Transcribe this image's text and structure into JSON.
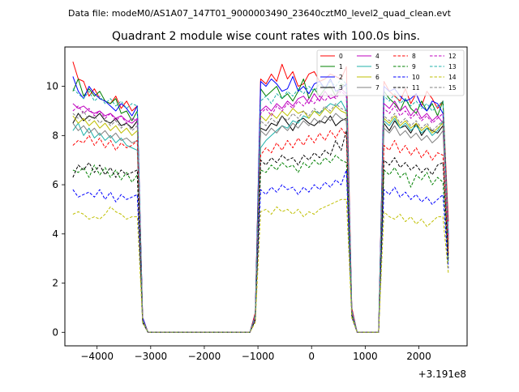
{
  "header": {
    "data_file": "Data file: modeM0/AS1A07_147T01_9000003490_23640cztM0_level2_quad_clean.evt"
  },
  "chart_data": {
    "type": "line",
    "title": "Quadrant 2 module wise count rates with 100.0s bins.",
    "xlabel": "",
    "ylabel": "",
    "x_offset_label": "+3.191e8",
    "xlim": [
      -4600,
      2900
    ],
    "ylim": [
      -0.55,
      11.6
    ],
    "xticks": [
      -4000,
      -3000,
      -2000,
      -1000,
      0,
      1000,
      2000
    ],
    "xtick_labels": [
      "−4000",
      "−3000",
      "−2000",
      "−1000",
      "0",
      "1000",
      "2000"
    ],
    "yticks": [
      0,
      2,
      4,
      6,
      8,
      10
    ],
    "ytick_labels": [
      "0",
      "2",
      "4",
      "6",
      "8",
      "10"
    ],
    "x": [
      -4450,
      -4350,
      -4250,
      -4150,
      -4050,
      -3950,
      -3850,
      -3750,
      -3650,
      -3550,
      -3450,
      -3350,
      -3250,
      -3150,
      -3050,
      -2950,
      -2850,
      -2750,
      -2650,
      -2550,
      -2450,
      -2350,
      -2250,
      -2150,
      -2050,
      -1950,
      -1850,
      -1750,
      -1650,
      -1550,
      -1450,
      -1350,
      -1250,
      -1150,
      -1050,
      -950,
      -850,
      -750,
      -650,
      -550,
      -450,
      -350,
      -250,
      -150,
      -50,
      50,
      150,
      250,
      350,
      450,
      550,
      650,
      750,
      850,
      950,
      1050,
      1150,
      1250,
      1350,
      1450,
      1550,
      1650,
      1750,
      1850,
      1950,
      2050,
      2150,
      2250,
      2350,
      2450,
      2550
    ],
    "series": [
      {
        "name": "0",
        "color": "#ff0000",
        "dash": "solid",
        "values": [
          11.0,
          10.3,
          10.2,
          9.6,
          9.9,
          9.5,
          9.4,
          9.3,
          9.6,
          9.1,
          9.4,
          9.0,
          9.2,
          0.6,
          0,
          0,
          0,
          0,
          0,
          0,
          0,
          0,
          0,
          0,
          0,
          0,
          0,
          0,
          0,
          0,
          0,
          0,
          0,
          0,
          0.8,
          10.3,
          10.1,
          10.5,
          10.2,
          10.9,
          10.3,
          10.6,
          10.0,
          10.1,
          10.5,
          10.6,
          10.2,
          10.3,
          10.5,
          10.4,
          10.3,
          10.8,
          1.0,
          0,
          0,
          0,
          0,
          0,
          10.2,
          9.8,
          9.6,
          9.4,
          9.9,
          9.3,
          9.7,
          9.2,
          9.8,
          9.5,
          9.1,
          9.4,
          4.5
        ]
      },
      {
        "name": "1",
        "color": "#008000",
        "dash": "solid",
        "values": [
          9.8,
          10.3,
          9.6,
          9.9,
          9.6,
          9.8,
          9.4,
          9.3,
          9.5,
          8.9,
          9.0,
          8.6,
          9.0,
          0.5,
          0,
          0,
          0,
          0,
          0,
          0,
          0,
          0,
          0,
          0,
          0,
          0,
          0,
          0,
          0,
          0,
          0,
          0,
          0,
          0,
          0.7,
          9.9,
          9.6,
          9.8,
          10.0,
          9.5,
          9.7,
          9.4,
          9.8,
          10.3,
          9.5,
          9.9,
          9.6,
          9.9,
          10.0,
          9.6,
          10.1,
          10.0,
          0.9,
          0,
          0,
          0,
          0,
          0,
          9.8,
          9.5,
          9.3,
          9.0,
          9.5,
          9.1,
          8.9,
          9.4,
          9.0,
          9.3,
          8.8,
          9.4,
          3.8
        ]
      },
      {
        "name": "2",
        "color": "#0000ff",
        "dash": "solid",
        "values": [
          10.4,
          9.8,
          9.5,
          10.0,
          9.7,
          9.5,
          9.4,
          9.2,
          9.0,
          9.3,
          9.1,
          8.8,
          9.2,
          0.6,
          0,
          0,
          0,
          0,
          0,
          0,
          0,
          0,
          0,
          0,
          0,
          0,
          0,
          0,
          0,
          0,
          0,
          0,
          0,
          0,
          0.7,
          10.2,
          10.0,
          10.3,
          10.1,
          9.8,
          9.9,
          10.4,
          9.8,
          10.0,
          9.7,
          10.1,
          10.2,
          9.9,
          10.3,
          9.8,
          9.9,
          10.1,
          0.9,
          0,
          0,
          0,
          0,
          0,
          10.0,
          9.8,
          9.9,
          9.6,
          9.4,
          9.5,
          9.7,
          9.2,
          9.0,
          9.4,
          9.3,
          8.9,
          4.0
        ]
      },
      {
        "name": "3",
        "color": "#000000",
        "dash": "solid",
        "values": [
          8.5,
          8.9,
          8.6,
          8.8,
          8.7,
          8.9,
          8.6,
          8.5,
          8.7,
          8.4,
          8.5,
          8.3,
          8.6,
          0.5,
          0,
          0,
          0,
          0,
          0,
          0,
          0,
          0,
          0,
          0,
          0,
          0,
          0,
          0,
          0,
          0,
          0,
          0,
          0,
          0,
          0.7,
          8.3,
          8.2,
          8.5,
          8.4,
          8.8,
          8.5,
          8.2,
          8.6,
          8.7,
          8.5,
          8.4,
          8.6,
          8.5,
          8.8,
          8.4,
          8.6,
          8.7,
          0.8,
          0,
          0,
          0,
          0,
          0,
          8.5,
          8.2,
          8.6,
          8.3,
          8.4,
          8.1,
          8.5,
          8.0,
          8.3,
          8.2,
          8.1,
          8.4,
          3.6
        ]
      },
      {
        "name": "4",
        "color": "#bf00bf",
        "dash": "solid",
        "values": [
          9.3,
          9.1,
          9.2,
          9.0,
          8.9,
          9.0,
          8.8,
          8.9,
          8.7,
          8.8,
          8.6,
          8.5,
          8.7,
          0.5,
          0,
          0,
          0,
          0,
          0,
          0,
          0,
          0,
          0,
          0,
          0,
          0,
          0,
          0,
          0,
          0,
          0,
          0,
          0,
          0,
          0.7,
          9.0,
          9.2,
          9.0,
          9.3,
          9.1,
          9.4,
          9.2,
          9.5,
          9.6,
          9.3,
          9.7,
          9.4,
          9.8,
          9.5,
          9.6,
          9.9,
          9.7,
          0.9,
          0,
          0,
          0,
          0,
          0,
          9.3,
          9.1,
          9.4,
          9.0,
          9.2,
          8.8,
          9.1,
          8.7,
          8.9,
          8.6,
          8.8,
          8.5,
          3.8
        ]
      },
      {
        "name": "5",
        "color": "#20b2aa",
        "dash": "solid",
        "values": [
          8.2,
          8.5,
          8.0,
          8.3,
          7.9,
          8.1,
          7.8,
          8.0,
          7.7,
          7.9,
          7.6,
          7.5,
          7.4,
          0.5,
          0,
          0,
          0,
          0,
          0,
          0,
          0,
          0,
          0,
          0,
          0,
          0,
          0,
          0,
          0,
          0,
          0,
          0,
          0,
          0,
          0.6,
          7.5,
          7.8,
          8.0,
          8.2,
          8.4,
          8.3,
          8.6,
          8.5,
          8.8,
          8.7,
          9.0,
          8.9,
          9.1,
          9.3,
          9.2,
          9.4,
          9.0,
          0.8,
          0,
          0,
          0,
          0,
          0,
          8.6,
          8.4,
          8.7,
          8.3,
          8.5,
          8.2,
          8.4,
          8.1,
          8.3,
          8.0,
          8.2,
          8.6,
          3.5
        ]
      },
      {
        "name": "6",
        "color": "#bfbf00",
        "dash": "solid",
        "values": [
          8.8,
          8.5,
          8.7,
          8.4,
          8.6,
          8.3,
          8.5,
          8.2,
          8.4,
          8.1,
          8.3,
          8.0,
          8.2,
          0.5,
          0,
          0,
          0,
          0,
          0,
          0,
          0,
          0,
          0,
          0,
          0,
          0,
          0,
          0,
          0,
          0,
          0,
          0,
          0,
          0,
          0.6,
          8.8,
          8.6,
          8.9,
          8.7,
          9.0,
          8.8,
          9.1,
          8.9,
          9.0,
          8.7,
          9.0,
          8.8,
          9.1,
          8.9,
          9.2,
          9.0,
          8.9,
          0.8,
          0,
          0,
          0,
          0,
          0,
          8.7,
          8.5,
          8.8,
          8.4,
          8.6,
          8.3,
          8.5,
          8.2,
          8.4,
          8.1,
          8.3,
          8.5,
          3.7
        ]
      },
      {
        "name": "7",
        "color": "#808080",
        "dash": "solid",
        "values": [
          8.5,
          8.2,
          8.4,
          8.1,
          8.3,
          8.0,
          8.2,
          7.9,
          8.1,
          7.8,
          7.9,
          7.7,
          7.8,
          0.5,
          0,
          0,
          0,
          0,
          0,
          0,
          0,
          0,
          0,
          0,
          0,
          0,
          0,
          0,
          0,
          0,
          0,
          0,
          0,
          0,
          0.6,
          8.2,
          8.0,
          8.3,
          8.1,
          8.4,
          8.2,
          8.5,
          8.3,
          8.6,
          8.4,
          8.7,
          8.5,
          8.8,
          8.6,
          8.9,
          8.7,
          8.6,
          0.8,
          0,
          0,
          0,
          0,
          0,
          8.3,
          8.1,
          8.4,
          8.0,
          8.2,
          7.9,
          8.1,
          7.8,
          8.0,
          7.7,
          7.9,
          8.2,
          3.4
        ]
      },
      {
        "name": "8",
        "color": "#ff0000",
        "dash": "dashed",
        "values": [
          7.6,
          7.8,
          7.7,
          8.0,
          7.6,
          7.9,
          7.5,
          7.8,
          7.4,
          7.7,
          7.5,
          7.6,
          7.8,
          0.5,
          0,
          0,
          0,
          0,
          0,
          0,
          0,
          0,
          0,
          0,
          0,
          0,
          0,
          0,
          0,
          0,
          0,
          0,
          0,
          0,
          0.6,
          7.2,
          7.5,
          7.3,
          7.7,
          7.4,
          7.8,
          7.5,
          7.9,
          7.6,
          8.0,
          7.7,
          8.1,
          7.8,
          8.2,
          7.9,
          8.3,
          8.0,
          0.8,
          0,
          0,
          0,
          0,
          0,
          7.6,
          7.4,
          7.8,
          7.3,
          7.6,
          7.2,
          7.5,
          7.1,
          7.4,
          7.0,
          7.3,
          7.2,
          3.2
        ]
      },
      {
        "name": "9",
        "color": "#008000",
        "dash": "dashed",
        "values": [
          6.6,
          6.5,
          6.7,
          6.3,
          6.8,
          6.4,
          6.7,
          6.3,
          6.6,
          6.2,
          6.5,
          6.1,
          6.4,
          0.4,
          0,
          0,
          0,
          0,
          0,
          0,
          0,
          0,
          0,
          0,
          0,
          0,
          0,
          0,
          0,
          0,
          0,
          0,
          0,
          0,
          0.5,
          6.6,
          6.5,
          6.8,
          6.6,
          6.9,
          6.7,
          6.8,
          6.5,
          6.9,
          6.7,
          7.0,
          6.8,
          7.1,
          6.9,
          7.2,
          7.0,
          6.9,
          0.7,
          0,
          0,
          0,
          0,
          0,
          6.6,
          6.4,
          6.7,
          6.3,
          6.5,
          5.9,
          6.4,
          6.2,
          6.5,
          6.0,
          6.3,
          6.1,
          2.8
        ]
      },
      {
        "name": "10",
        "color": "#0000ff",
        "dash": "dashed",
        "values": [
          5.8,
          5.5,
          5.6,
          5.7,
          5.5,
          5.8,
          5.4,
          5.7,
          5.3,
          5.6,
          5.4,
          5.5,
          5.6,
          0.4,
          0,
          0,
          0,
          0,
          0,
          0,
          0,
          0,
          0,
          0,
          0,
          0,
          0,
          0,
          0,
          0,
          0,
          0,
          0,
          0,
          0.5,
          5.8,
          5.6,
          5.9,
          5.7,
          6.0,
          5.8,
          5.9,
          5.6,
          5.9,
          5.7,
          6.0,
          5.8,
          6.1,
          5.9,
          6.2,
          6.0,
          6.6,
          0.6,
          0,
          0,
          0,
          0,
          0,
          5.8,
          5.6,
          5.9,
          5.5,
          5.7,
          5.4,
          5.6,
          5.3,
          5.5,
          5.2,
          5.4,
          5.6,
          2.6
        ]
      },
      {
        "name": "11",
        "color": "#000000",
        "dash": "dashed",
        "values": [
          6.3,
          6.8,
          6.6,
          6.9,
          6.5,
          6.8,
          6.4,
          6.7,
          6.3,
          6.6,
          6.4,
          6.5,
          6.6,
          0.4,
          0,
          0,
          0,
          0,
          0,
          0,
          0,
          0,
          0,
          0,
          0,
          0,
          0,
          0,
          0,
          0,
          0,
          0,
          0,
          0,
          0.5,
          7.0,
          6.8,
          7.1,
          6.9,
          7.2,
          7.0,
          7.1,
          6.8,
          7.2,
          7.0,
          7.3,
          7.1,
          7.4,
          7.2,
          7.8,
          7.4,
          8.2,
          0.7,
          0,
          0,
          0,
          0,
          0,
          7.0,
          6.8,
          7.1,
          6.7,
          6.9,
          6.6,
          6.8,
          6.5,
          6.7,
          6.4,
          6.8,
          6.9,
          3.0
        ]
      },
      {
        "name": "12",
        "color": "#bf00bf",
        "dash": "dashed",
        "values": [
          9.0,
          9.2,
          8.9,
          9.1,
          8.8,
          9.0,
          8.7,
          8.9,
          8.6,
          8.8,
          8.5,
          8.7,
          8.6,
          0.5,
          0,
          0,
          0,
          0,
          0,
          0,
          0,
          0,
          0,
          0,
          0,
          0,
          0,
          0,
          0,
          0,
          0,
          0,
          0,
          0,
          0.6,
          8.9,
          9.1,
          8.8,
          9.2,
          9.0,
          9.3,
          9.1,
          9.4,
          9.2,
          9.5,
          9.3,
          9.6,
          9.4,
          9.7,
          9.5,
          9.8,
          9.6,
          0.8,
          0,
          0,
          0,
          0,
          0,
          9.1,
          8.9,
          9.2,
          8.8,
          9.0,
          8.7,
          8.9,
          8.6,
          8.8,
          8.5,
          8.7,
          8.9,
          3.8
        ]
      },
      {
        "name": "13",
        "color": "#20b2aa",
        "dash": "dashed",
        "values": [
          9.9,
          9.7,
          9.5,
          9.8,
          9.4,
          9.6,
          9.3,
          9.5,
          9.2,
          9.4,
          9.1,
          9.3,
          9.2,
          0.5,
          0,
          0,
          0,
          0,
          0,
          0,
          0,
          0,
          0,
          0,
          0,
          0,
          0,
          0,
          0,
          0,
          0,
          0,
          0,
          0,
          0.7,
          9.4,
          9.6,
          9.3,
          9.7,
          9.5,
          9.8,
          9.6,
          9.9,
          9.7,
          10.0,
          9.8,
          10.1,
          9.9,
          10.2,
          10.0,
          10.3,
          10.1,
          0.9,
          0,
          0,
          0,
          0,
          0,
          9.6,
          9.4,
          9.7,
          9.3,
          9.5,
          9.2,
          9.4,
          9.1,
          9.3,
          9.0,
          9.2,
          9.4,
          4.0
        ]
      },
      {
        "name": "14",
        "color": "#bfbf00",
        "dash": "dashed",
        "values": [
          4.8,
          4.9,
          4.8,
          4.6,
          4.7,
          4.6,
          4.8,
          5.1,
          4.9,
          4.8,
          4.6,
          4.7,
          4.7,
          0.4,
          0,
          0,
          0,
          0,
          0,
          0,
          0,
          0,
          0,
          0,
          0,
          0,
          0,
          0,
          0,
          0,
          0,
          0,
          0,
          0,
          0.4,
          4.9,
          5.0,
          4.8,
          5.1,
          4.9,
          5.0,
          4.8,
          5.0,
          4.7,
          4.9,
          4.8,
          5.0,
          5.1,
          5.2,
          5.3,
          5.4,
          5.4,
          0.6,
          0,
          0,
          0,
          0,
          0,
          4.9,
          4.7,
          4.6,
          4.8,
          4.5,
          4.7,
          4.4,
          4.6,
          4.3,
          4.5,
          4.7,
          4.7,
          2.4
        ]
      },
      {
        "name": "15",
        "color": "#808080",
        "dash": "dashed",
        "values": [
          8.9,
          8.7,
          9.0,
          8.6,
          8.8,
          8.5,
          8.7,
          8.4,
          8.6,
          8.3,
          8.5,
          8.2,
          8.4,
          0.5,
          0,
          0,
          0,
          0,
          0,
          0,
          0,
          0,
          0,
          0,
          0,
          0,
          0,
          0,
          0,
          0,
          0,
          0,
          0,
          0,
          0.6,
          8.6,
          8.4,
          8.7,
          8.5,
          8.8,
          8.6,
          8.9,
          8.7,
          9.0,
          8.8,
          9.1,
          8.9,
          9.2,
          9.0,
          9.3,
          9.1,
          9.0,
          0.8,
          0,
          0,
          0,
          0,
          0,
          8.8,
          8.6,
          8.9,
          8.5,
          8.7,
          8.4,
          8.6,
          8.3,
          8.5,
          8.2,
          8.4,
          8.6,
          3.6
        ]
      }
    ]
  }
}
